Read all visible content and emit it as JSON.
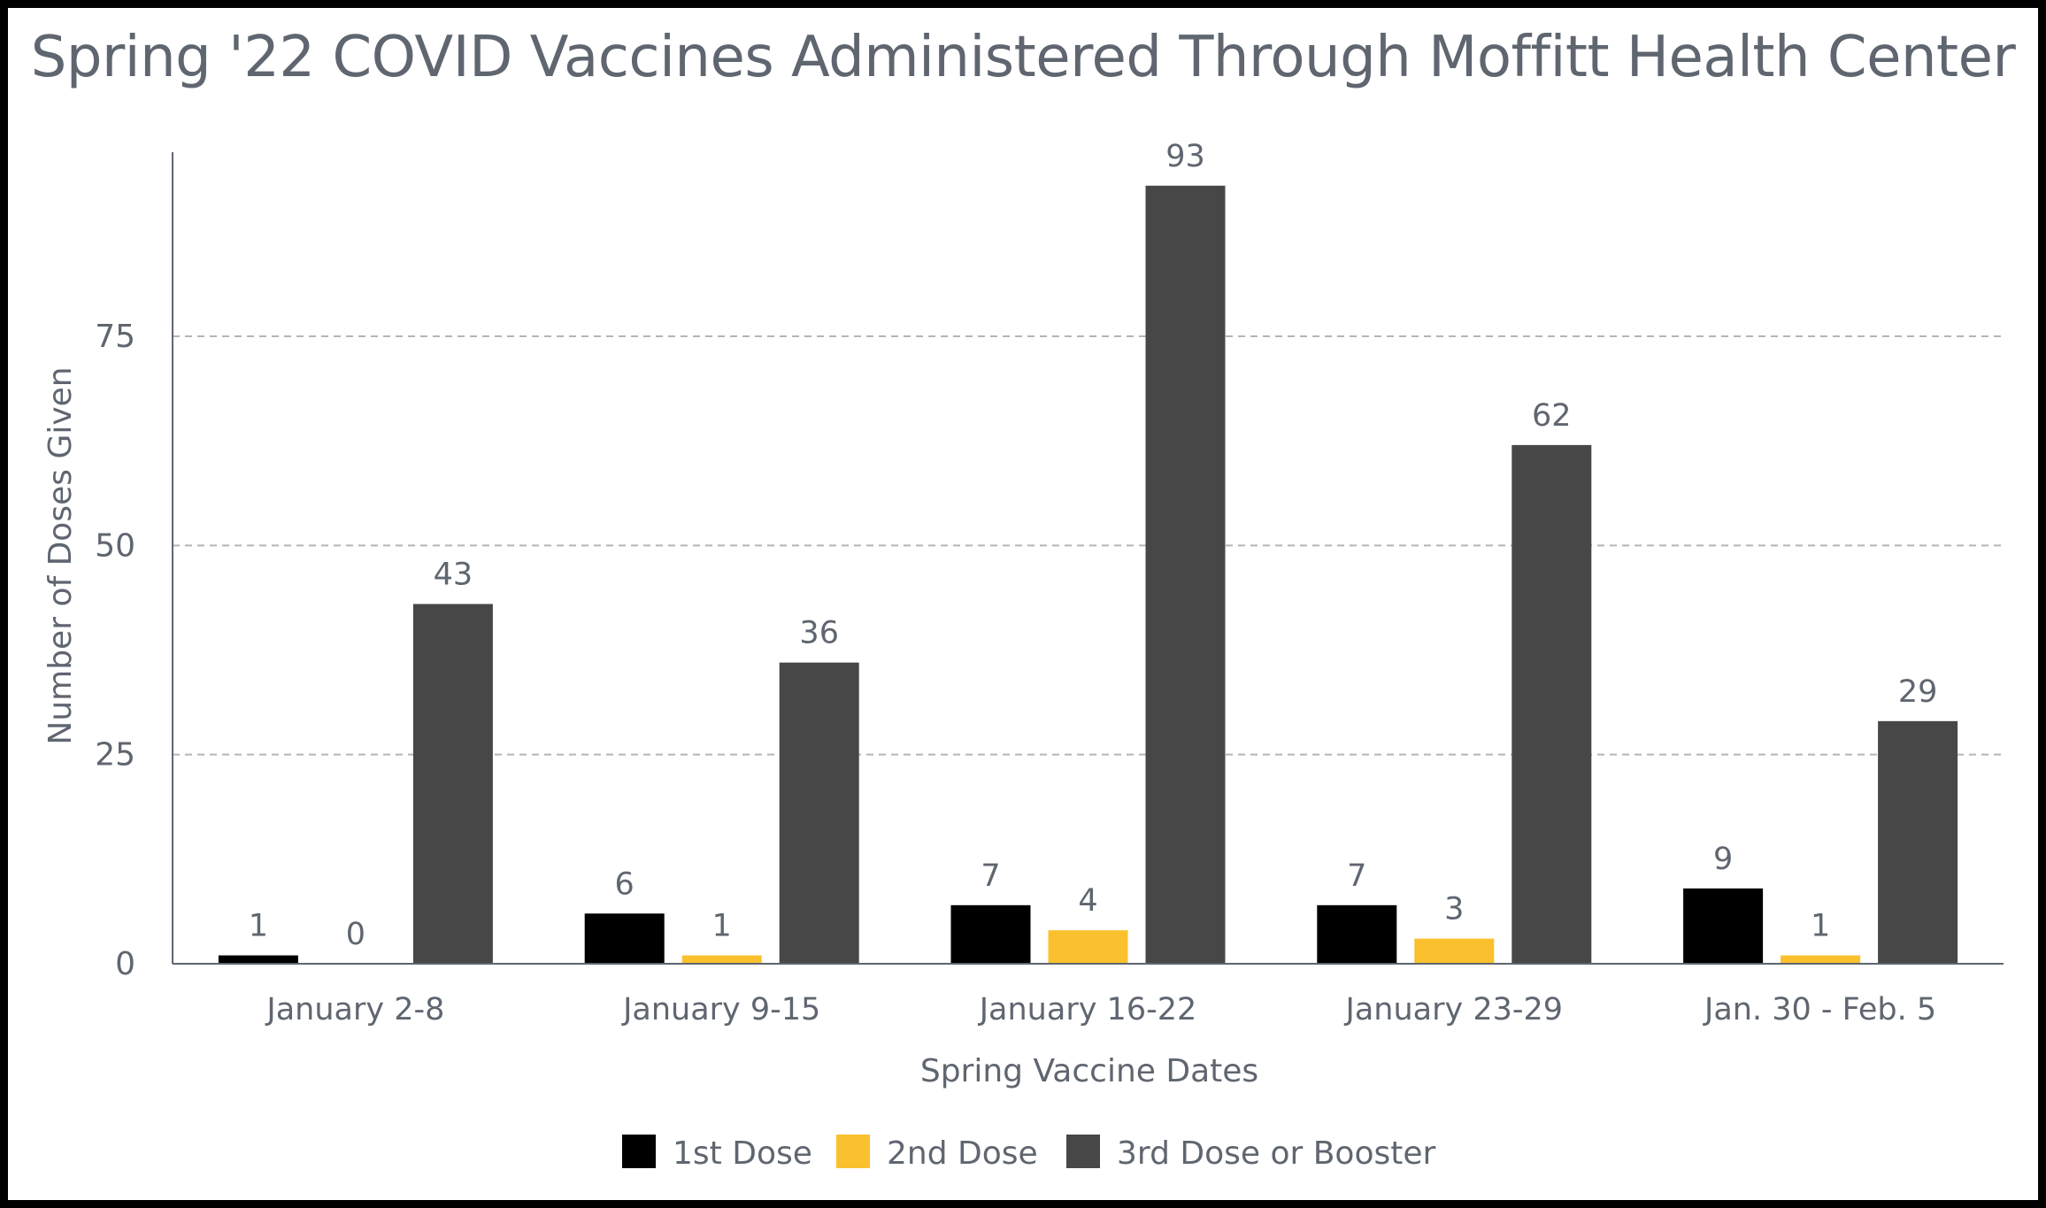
{
  "chart_data": {
    "type": "bar",
    "title": "Spring '22 COVID Vaccines Administered Through Moffitt Health Center",
    "xlabel": "Spring Vaccine Dates",
    "ylabel": "Number of Doses Given",
    "categories": [
      "January 2-8",
      "January 9-15",
      "January 16-22",
      "January 23-29",
      "Jan. 30 - Feb. 5"
    ],
    "series": [
      {
        "name": "1st Dose",
        "color": "#000000",
        "values": [
          1,
          6,
          7,
          7,
          9
        ]
      },
      {
        "name": "2nd Dose",
        "color": "#fbc02d",
        "values": [
          0,
          1,
          4,
          3,
          1
        ]
      },
      {
        "name": "3rd Dose or Booster",
        "color": "#474747",
        "values": [
          43,
          36,
          93,
          62,
          29
        ]
      }
    ],
    "ylim": [
      0,
      97
    ],
    "yticks": [
      0,
      25,
      50,
      75
    ],
    "grid": "dashed horizontal",
    "legend": "bottom-center",
    "data_labels": true
  }
}
